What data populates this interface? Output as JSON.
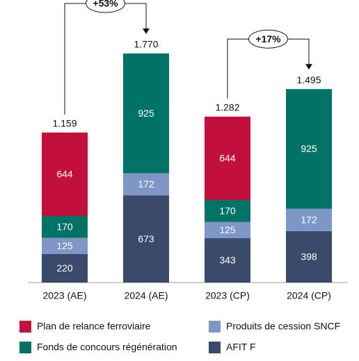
{
  "chart_data": {
    "type": "stacked_bar",
    "categories": [
      "2023 (AE)",
      "2024 (AE)",
      "2023 (CP)",
      "2024 (CP)"
    ],
    "series": [
      {
        "name": "AFIT F",
        "color": "#3b4a6b",
        "values": [
          220,
          673,
          343,
          398
        ]
      },
      {
        "name": "Produits de cession SNCF",
        "color": "#7f97c6",
        "values": [
          125,
          172,
          125,
          172
        ]
      },
      {
        "name": "Fonds de concours régénération",
        "color": "#007367",
        "values": [
          170,
          925,
          170,
          925
        ]
      },
      {
        "name": "Plan de relance ferroviaire",
        "color": "#c30f3c",
        "values": [
          644,
          null,
          644,
          null
        ]
      }
    ],
    "totals": {
      "values": [
        1159,
        1770,
        1282,
        1495
      ],
      "value_labels": [
        "1.159",
        "1.770",
        "1.282",
        "1.495"
      ]
    },
    "annotations": [
      "+53%",
      "+17%"
    ]
  }
}
